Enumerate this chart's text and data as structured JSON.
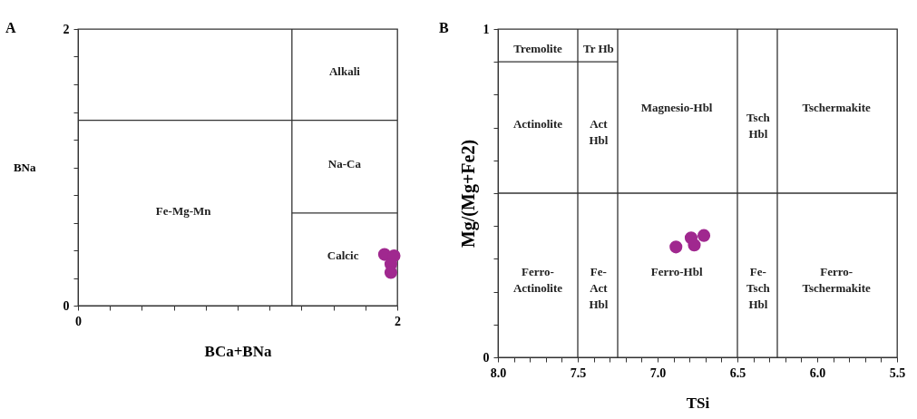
{
  "chart_data": [
    {
      "type": "scatter",
      "title": "A",
      "xlabel": "BCa+BNa",
      "ylabel": "BNa",
      "grid": false,
      "xlim": [
        0,
        2
      ],
      "ylim": [
        0,
        2
      ],
      "xticks": [
        0,
        {
          "value": 0.2,
          "label": null
        },
        {
          "value": 0.4,
          "label": null
        },
        {
          "value": 0.6,
          "label": null
        },
        {
          "value": 0.8,
          "label": null
        },
        {
          "value": 1,
          "label": null
        },
        {
          "value": 1.2,
          "label": null
        },
        {
          "value": 1.4,
          "label": null
        },
        {
          "value": 1.6,
          "label": null
        },
        {
          "value": 1.8,
          "label": null
        },
        2
      ],
      "yticks": [
        0,
        {
          "value": 0.2,
          "label": null
        },
        {
          "value": 0.4,
          "label": null
        },
        {
          "value": 0.6,
          "label": null
        },
        {
          "value": 0.8,
          "label": null
        },
        {
          "value": 1,
          "label": null
        },
        {
          "value": 1.2,
          "label": null
        },
        {
          "value": 1.4,
          "label": null
        },
        {
          "value": 1.6,
          "label": null
        },
        {
          "value": 1.8,
          "label": null
        },
        2
      ],
      "series": [
        {
          "color": "#a0288f",
          "marker": "circle",
          "x": [
            1.92,
            1.98,
            1.96,
            1.96
          ],
          "values": [
            0.37,
            0.36,
            0.3,
            0.24
          ]
        },
        {
          "type": "line",
          "color": "#333333",
          "x": [
            1.34,
            2
          ],
          "values": [
            0.67,
            0.67
          ]
        }
      ],
      "ref_lines": [
        {
          "axis": "x",
          "value": 1.34,
          "color": "#333333"
        },
        {
          "axis": "y",
          "value": 1.34,
          "color": "#333333"
        }
      ],
      "annotations": [
        "Alkali",
        "Na-Ca",
        "Calcic",
        "Fe-Mg-Mn"
      ]
    },
    {
      "type": "scatter",
      "title": "B",
      "xlabel": "TSi",
      "ylabel": "Mg/(Mg+Fe2)",
      "grid": false,
      "xlim": [
        8,
        5.5
      ],
      "ylim": [
        0,
        1
      ],
      "xticks": [
        {
          "value": 8,
          "label": "8.0"
        },
        {
          "value": 7.9,
          "label": null
        },
        {
          "value": 7.8,
          "label": null
        },
        {
          "value": 7.7,
          "label": null
        },
        {
          "value": 7.6,
          "label": null
        },
        7.5,
        {
          "value": 7.4,
          "label": null
        },
        {
          "value": 7.3,
          "label": null
        },
        {
          "value": 7.2,
          "label": null
        },
        {
          "value": 7.1,
          "label": null
        },
        {
          "value": 7,
          "label": "7.0"
        },
        {
          "value": 6.9,
          "label": null
        },
        {
          "value": 6.8,
          "label": null
        },
        {
          "value": 6.7,
          "label": null
        },
        {
          "value": 6.6,
          "label": null
        },
        6.5,
        {
          "value": 6.4,
          "label": null
        },
        {
          "value": 6.3,
          "label": null
        },
        {
          "value": 6.2,
          "label": null
        },
        {
          "value": 6.1,
          "label": null
        },
        {
          "value": 6,
          "label": "6.0"
        },
        {
          "value": 5.9,
          "label": null
        },
        {
          "value": 5.8,
          "label": null
        },
        {
          "value": 5.7,
          "label": null
        },
        {
          "value": 5.6,
          "label": null
        },
        5.5
      ],
      "yticks": [
        0,
        {
          "value": 0.1,
          "label": null
        },
        {
          "value": 0.2,
          "label": null
        },
        {
          "value": 0.3,
          "label": null
        },
        {
          "value": 0.4,
          "label": null
        },
        {
          "value": 0.5,
          "label": null
        },
        {
          "value": 0.6,
          "label": null
        },
        {
          "value": 0.7,
          "label": null
        },
        {
          "value": 0.8,
          "label": null
        },
        {
          "value": 0.9,
          "label": null
        },
        1
      ],
      "series": [
        {
          "color": "#a0288f",
          "marker": "circle",
          "x": [
            6.885,
            6.79,
            6.77,
            6.71
          ],
          "values": [
            0.336,
            0.364,
            0.342,
            0.371
          ]
        },
        {
          "type": "line",
          "color": "#333333",
          "x": [
            8,
            7.25
          ],
          "values": [
            0.9,
            0.9
          ]
        }
      ],
      "ref_lines": [
        {
          "axis": "x",
          "value": 7.5,
          "color": "#333333"
        },
        {
          "axis": "x",
          "value": 7.25,
          "color": "#333333"
        },
        {
          "axis": "x",
          "value": 6.5,
          "color": "#333333"
        },
        {
          "axis": "x",
          "value": 6.25,
          "color": "#333333"
        },
        {
          "axis": "y",
          "value": 0.5,
          "color": "#333333"
        }
      ],
      "annotations": [
        "Tremolite",
        "Tr Hb",
        "Actinolite",
        "Act\nHbl",
        "Magnesio-Hbl",
        "Tsch\nHbl",
        "Tschermakite",
        "Ferro-\nActinolite",
        "Fe-\nAct\nHbl",
        "Ferro-Hbl",
        "Fe-\nTsch\nHbl",
        "Ferro-\nTschermakite"
      ]
    }
  ]
}
